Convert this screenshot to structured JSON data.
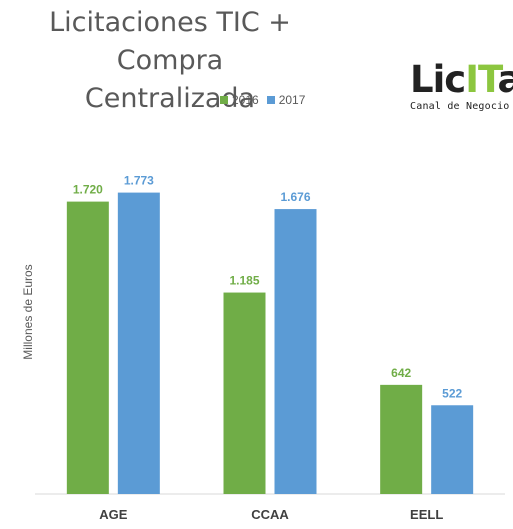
{
  "chart_data": {
    "type": "bar",
    "title": "Licitaciones TIC + Compra Centralizada",
    "title_lines": [
      "Licitaciones TIC + Compra",
      "Centralizada"
    ],
    "ylabel": "Millones de Euros",
    "xlabel": "",
    "categories": [
      "AGE",
      "CCAA",
      "EELL"
    ],
    "series": [
      {
        "name": "2016",
        "color": "#70ad47",
        "values": [
          1720,
          1185,
          642
        ],
        "labels": [
          "1.720",
          "1.185",
          "642"
        ]
      },
      {
        "name": "2017",
        "color": "#5b9bd5",
        "values": [
          1773,
          1676,
          522
        ],
        "labels": [
          "1.773",
          "1.676",
          "522"
        ]
      }
    ],
    "ylim": [
      0,
      2000
    ],
    "grid": false,
    "legend_position": "top-center"
  },
  "logo": {
    "main_prefix": "Lic",
    "main_highlight": "IT",
    "main_suffix": "a",
    "subtitle": "Canal de Negocio"
  }
}
